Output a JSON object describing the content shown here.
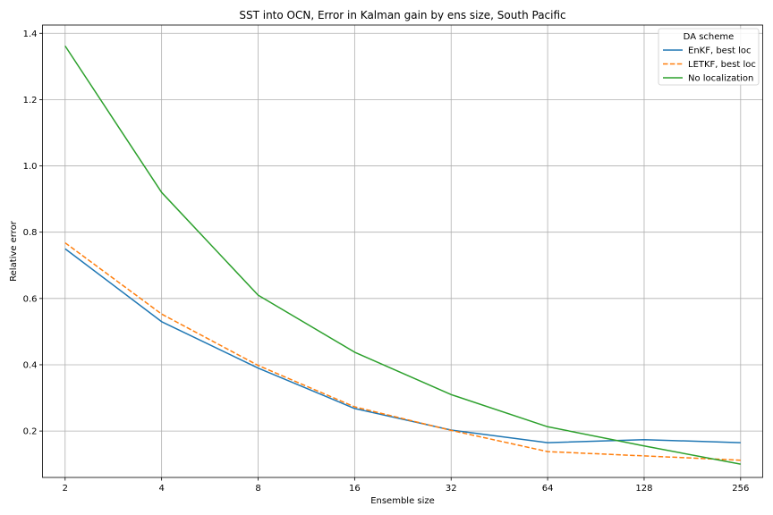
{
  "chart_data": {
    "type": "line",
    "title": "SST into OCN, Error in Kalman gain by ens size, South Pacific",
    "xlabel": "Ensemble size",
    "ylabel": "Relative error",
    "x_scale": "log2",
    "x": [
      2,
      4,
      8,
      16,
      32,
      64,
      128,
      256
    ],
    "x_tick_labels": [
      "2",
      "4",
      "8",
      "16",
      "32",
      "64",
      "128",
      "256"
    ],
    "xlim": [
      1.7,
      300
    ],
    "ylim": [
      0.06,
      1.425
    ],
    "y_ticks": [
      0.2,
      0.4,
      0.6,
      0.8,
      1.0,
      1.2,
      1.4
    ],
    "y_tick_labels": [
      "0.2",
      "0.4",
      "0.6",
      "0.8",
      "1.0",
      "1.2",
      "1.4"
    ],
    "grid": true,
    "legend": {
      "title": "DA scheme",
      "placement": "top-right"
    },
    "series": [
      {
        "name": "EnKF, best loc",
        "color": "#1f77b4",
        "linestyle": "solid",
        "values": [
          0.75,
          0.53,
          0.39,
          0.268,
          0.203,
          0.165,
          0.174,
          0.165
        ]
      },
      {
        "name": "LETKF, best loc",
        "color": "#ff7f0e",
        "linestyle": "dashed",
        "values": [
          0.768,
          0.553,
          0.398,
          0.273,
          0.202,
          0.138,
          0.125,
          0.112
        ]
      },
      {
        "name": "No localization",
        "color": "#2ca02c",
        "linestyle": "solid",
        "values": [
          1.362,
          0.92,
          0.61,
          0.438,
          0.31,
          0.213,
          0.155,
          0.1
        ]
      }
    ]
  }
}
